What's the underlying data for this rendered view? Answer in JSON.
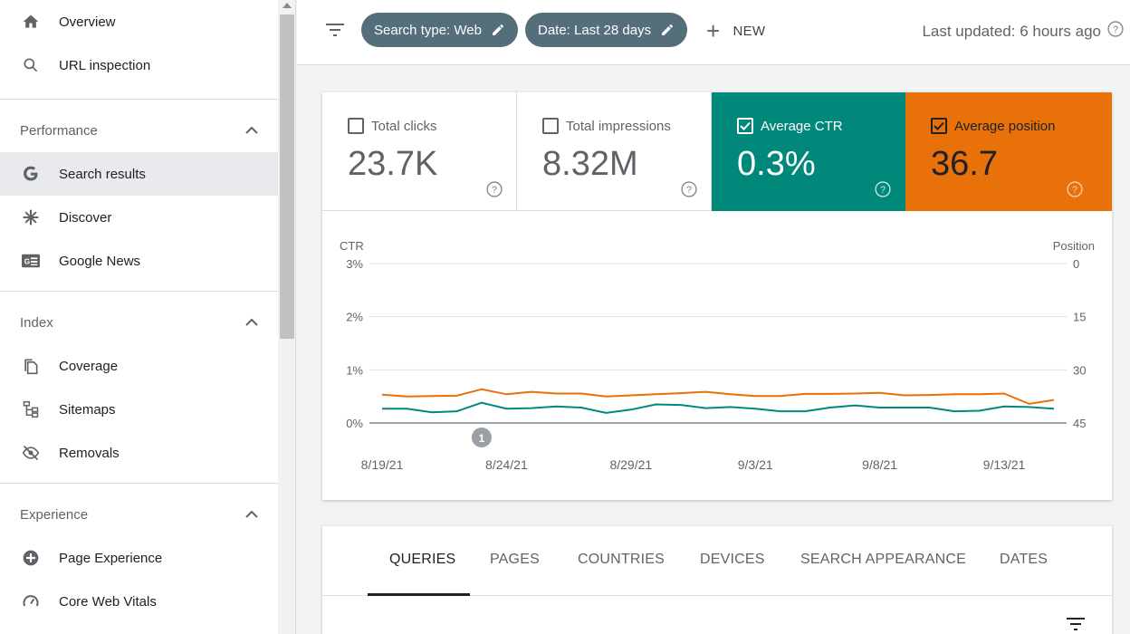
{
  "sidebar": {
    "top_items": [
      {
        "label": "Overview",
        "icon": "home-icon"
      },
      {
        "label": "URL inspection",
        "icon": "search-icon"
      }
    ],
    "sections": [
      {
        "title": "Performance",
        "items": [
          {
            "label": "Search results",
            "icon": "google-g-icon",
            "active": true
          },
          {
            "label": "Discover",
            "icon": "asterisk-icon"
          },
          {
            "label": "Google News",
            "icon": "news-icon"
          }
        ]
      },
      {
        "title": "Index",
        "items": [
          {
            "label": "Coverage",
            "icon": "copy-icon"
          },
          {
            "label": "Sitemaps",
            "icon": "sitemap-icon"
          },
          {
            "label": "Removals",
            "icon": "eye-off-icon"
          }
        ]
      },
      {
        "title": "Experience",
        "items": [
          {
            "label": "Page Experience",
            "icon": "plus-circle-icon"
          },
          {
            "label": "Core Web Vitals",
            "icon": "gauge-icon"
          }
        ]
      }
    ]
  },
  "topbar": {
    "chip_search_type": "Search type: Web",
    "chip_date": "Date: Last 28 days",
    "new_label": "NEW",
    "last_updated": "Last updated: 6 hours ago"
  },
  "metrics": {
    "clicks": {
      "label": "Total clicks",
      "value": "23.7K",
      "checked": false
    },
    "impressions": {
      "label": "Total impressions",
      "value": "8.32M",
      "checked": false
    },
    "ctr": {
      "label": "Average CTR",
      "value": "0.3%",
      "checked": true
    },
    "position": {
      "label": "Average position",
      "value": "36.7",
      "checked": true
    }
  },
  "colors": {
    "ctr": "#00897b",
    "position": "#e8710a",
    "chip": "#546e7a"
  },
  "chart_data": {
    "type": "line",
    "left_axis_label": "CTR",
    "right_axis_label": "Position",
    "left_ticks": [
      "3%",
      "2%",
      "1%",
      "0%"
    ],
    "right_ticks": [
      "0",
      "15",
      "30",
      "45"
    ],
    "x_tick_labels": [
      "8/19/21",
      "8/24/21",
      "8/29/21",
      "9/3/21",
      "9/8/21",
      "9/13/21"
    ],
    "ylim_left": [
      0,
      3
    ],
    "ylim_right": [
      45,
      0
    ],
    "annotation": {
      "label": "1",
      "x_index": 4
    },
    "series": [
      {
        "name": "Average CTR",
        "axis": "left",
        "color": "#00897b",
        "values": [
          0.27,
          0.27,
          0.2,
          0.22,
          0.38,
          0.27,
          0.28,
          0.31,
          0.29,
          0.19,
          0.25,
          0.35,
          0.34,
          0.28,
          0.3,
          0.27,
          0.22,
          0.22,
          0.29,
          0.33,
          0.29,
          0.29,
          0.29,
          0.22,
          0.23,
          0.31,
          0.3,
          0.27
        ]
      },
      {
        "name": "Average position",
        "axis": "right",
        "color": "#e8710a",
        "values": [
          37.0,
          37.5,
          37.4,
          37.3,
          35.5,
          36.9,
          36.2,
          36.7,
          36.7,
          37.5,
          37.2,
          36.9,
          36.6,
          36.2,
          36.9,
          37.4,
          37.4,
          36.8,
          36.8,
          36.7,
          36.5,
          37.2,
          37.1,
          36.9,
          36.9,
          36.7,
          39.6,
          38.5
        ]
      }
    ]
  },
  "tabs": {
    "items": [
      "QUERIES",
      "PAGES",
      "COUNTRIES",
      "DEVICES",
      "SEARCH APPEARANCE",
      "DATES"
    ]
  }
}
